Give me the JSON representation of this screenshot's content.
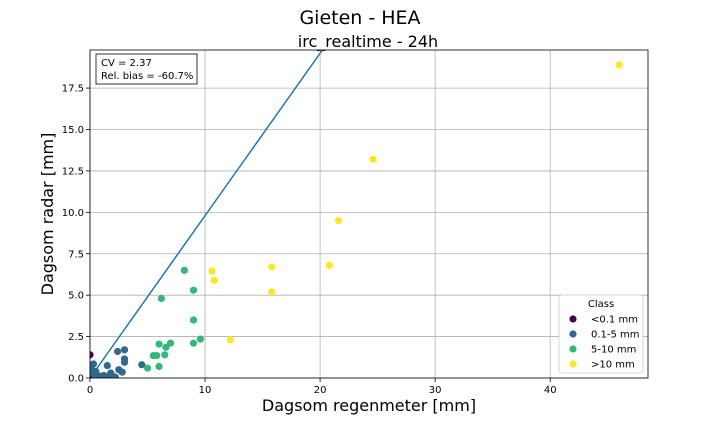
{
  "chart_data": {
    "type": "scatter",
    "title": "Gieten - HEA",
    "subtitle": "irc_realtime - 24h",
    "xlabel": "Dagsom regenmeter [mm]",
    "ylabel": "Dagsom radar [mm]",
    "xlim": [
      0,
      48.5
    ],
    "ylim": [
      0,
      19.8
    ],
    "x_ticks": [
      0,
      10,
      20,
      30,
      40
    ],
    "y_ticks": [
      0.0,
      2.5,
      5.0,
      7.5,
      10.0,
      12.5,
      15.0,
      17.5
    ],
    "x_tick_labels": [
      "0",
      "10",
      "20",
      "30",
      "40"
    ],
    "y_tick_labels": [
      "0.0",
      "2.5",
      "5.0",
      "7.5",
      "10.0",
      "12.5",
      "15.0",
      "17.5"
    ],
    "grid": true,
    "stats": [
      "CV = 2.37",
      "Rel. bias = -60.7%"
    ],
    "reference_line": {
      "x": [
        0,
        20.2
      ],
      "y": [
        0,
        19.8
      ],
      "color": "#1f77b4"
    },
    "legend": {
      "title": "Class",
      "position": "lower-right"
    },
    "series": [
      {
        "name": "<0.1 mm",
        "color": "#440154",
        "points": [
          [
            0,
            0
          ],
          [
            0,
            1.4
          ],
          [
            0,
            0.3
          ],
          [
            0.05,
            0.05
          ]
        ]
      },
      {
        "name": "0.1-5 mm",
        "color": "#31688e",
        "points": [
          [
            0.3,
            0.85
          ],
          [
            0.5,
            0.4
          ],
          [
            0.4,
            0.15
          ],
          [
            0.8,
            0.05
          ],
          [
            0.6,
            0.2
          ],
          [
            1.0,
            0.1
          ],
          [
            1.2,
            0.15
          ],
          [
            1.4,
            0.05
          ],
          [
            1.6,
            0.1
          ],
          [
            1.5,
            0.75
          ],
          [
            1.8,
            0.3
          ],
          [
            2.0,
            0.1
          ],
          [
            2.2,
            0.05
          ],
          [
            2.5,
            0.5
          ],
          [
            2.4,
            1.6
          ],
          [
            2.8,
            0.35
          ],
          [
            3.0,
            1.7
          ],
          [
            3.0,
            1.15
          ],
          [
            3.0,
            0.95
          ],
          [
            4.5,
            0.8
          ],
          [
            0.1,
            0.6
          ],
          [
            0.2,
            0.3
          ]
        ]
      },
      {
        "name": "5-10 mm",
        "color": "#35b779",
        "points": [
          [
            5.0,
            0.6
          ],
          [
            5.5,
            1.35
          ],
          [
            5.8,
            1.35
          ],
          [
            6.0,
            2.05
          ],
          [
            6.2,
            4.8
          ],
          [
            6.0,
            0.7
          ],
          [
            6.5,
            1.4
          ],
          [
            6.6,
            1.85
          ],
          [
            7.0,
            2.1
          ],
          [
            8.2,
            6.5
          ],
          [
            9.0,
            5.3
          ],
          [
            9.0,
            3.5
          ],
          [
            9.0,
            2.1
          ],
          [
            9.6,
            2.35
          ]
        ]
      },
      {
        "name": ">10 mm",
        "color": "#fde725",
        "points": [
          [
            10.6,
            6.45
          ],
          [
            10.8,
            5.9
          ],
          [
            12.2,
            2.3
          ],
          [
            15.8,
            6.7
          ],
          [
            15.8,
            5.2
          ],
          [
            20.8,
            6.8
          ],
          [
            21.6,
            9.5
          ],
          [
            24.6,
            13.2
          ],
          [
            46.0,
            18.9
          ]
        ]
      }
    ]
  }
}
